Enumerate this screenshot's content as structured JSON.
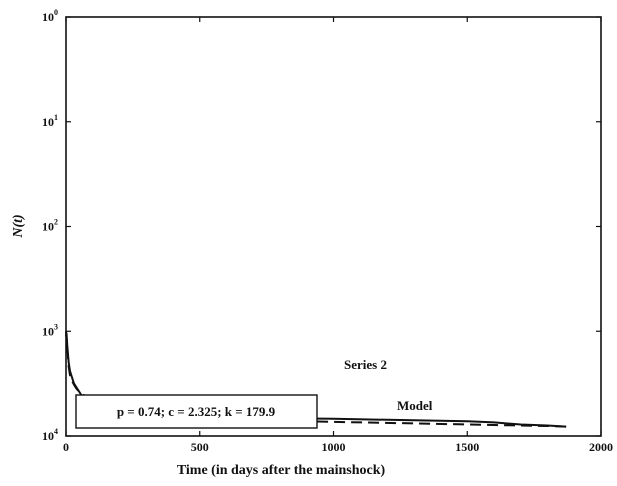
{
  "chart_data": {
    "type": "line",
    "title": "",
    "xlabel": "Time (in days after the mainshock)",
    "ylabel": "N(t)",
    "xlim": [
      0,
      2000
    ],
    "x_ticks": [
      0,
      500,
      1000,
      1500,
      2000
    ],
    "y_scale": "log",
    "y_ticks": [
      {
        "base": "10",
        "exp": "0"
      },
      {
        "base": "10",
        "exp": "1"
      },
      {
        "base": "10",
        "exp": "2"
      },
      {
        "base": "10",
        "exp": "3"
      },
      {
        "base": "10",
        "exp": "4"
      }
    ],
    "y_decade_range": [
      0,
      4
    ],
    "grid": false,
    "series": [
      {
        "name": "Series 2",
        "style": "solid",
        "x": [
          0,
          2,
          5,
          10,
          15,
          20,
          30,
          40,
          50,
          60,
          80,
          100,
          150,
          200,
          250,
          300,
          400,
          500,
          600,
          800,
          1000,
          1200,
          1300,
          1400,
          1500,
          1600,
          1700,
          1800,
          1870
        ],
        "y": [
          3.05,
          3.02,
          3.14,
          3.3,
          3.38,
          3.42,
          3.5,
          3.54,
          3.58,
          3.62,
          3.67,
          3.7,
          3.73,
          3.75,
          3.77,
          3.78,
          3.79,
          3.81,
          3.82,
          3.83,
          3.835,
          3.845,
          3.85,
          3.855,
          3.86,
          3.87,
          3.89,
          3.9,
          3.91
        ]
      },
      {
        "name": "Model",
        "style": "dashed",
        "x": [
          0,
          3,
          6,
          10,
          15,
          20,
          30,
          40,
          50,
          60,
          80,
          100,
          150,
          200,
          300,
          500,
          700,
          1000,
          1300,
          1600,
          1800,
          1870
        ],
        "y": [
          3.0,
          3.1,
          3.2,
          3.34,
          3.42,
          3.46,
          3.51,
          3.55,
          3.58,
          3.6,
          3.63,
          3.67,
          3.72,
          3.74,
          3.78,
          3.82,
          3.845,
          3.865,
          3.88,
          3.895,
          3.905,
          3.91
        ]
      }
    ],
    "annotations": {
      "params": "p = 0.74; c = 2.325; k = 179.9"
    }
  }
}
